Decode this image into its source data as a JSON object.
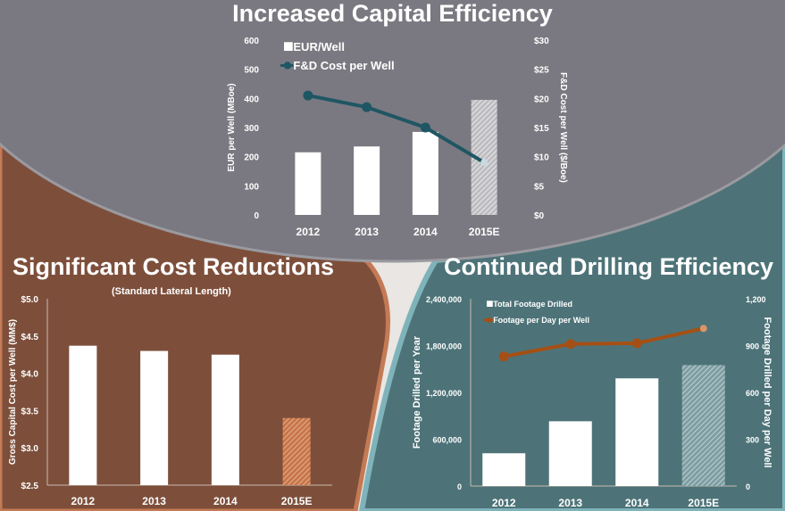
{
  "panels": {
    "top": {
      "title": "Increased Capital Efficiency"
    },
    "left": {
      "title": "Significant Cost Reductions",
      "subtitle": "(Standard Lateral Length)"
    },
    "right": {
      "title": "Continued Drilling Efficiency"
    }
  },
  "colors": {
    "gray": "#7a7981",
    "brown": "#7d4f3b",
    "teal": "#4d7378",
    "line_teal": "#1f5663",
    "line_orange": "#a64f14",
    "hatch_orange": "#d9956a"
  },
  "chart_data": [
    {
      "id": "top",
      "type": "bar+line",
      "categories": [
        "2012",
        "2013",
        "2014",
        "2015E"
      ],
      "series": [
        {
          "name": "EUR/Well",
          "axis": "left",
          "kind": "bar",
          "values": [
            215,
            235,
            285,
            395
          ]
        },
        {
          "name": "F&D Cost per Well",
          "axis": "right",
          "kind": "line",
          "values": [
            20.5,
            18.5,
            15,
            9
          ]
        }
      ],
      "ylabel": "EUR per Well  (MBoe)",
      "y2label": "F&D Cost per Well  ($/Boe)",
      "ylim": [
        0,
        600
      ],
      "yticks": [
        "0",
        "100",
        "200",
        "300",
        "400",
        "500",
        "600"
      ],
      "y2lim": [
        0,
        30
      ],
      "y2ticks": [
        "$0",
        "$5",
        "$10",
        "$15",
        "$20",
        "$25",
        "$30"
      ],
      "legend": "top-left"
    },
    {
      "id": "left",
      "type": "bar",
      "categories": [
        "2012",
        "2013",
        "2014",
        "2015E"
      ],
      "values": [
        4.37,
        4.3,
        4.25,
        3.4
      ],
      "ylabel": "Gross Capital Cost per Well  (MM$)",
      "ylim": [
        2.5,
        5.0
      ],
      "yticks": [
        "$2.5",
        "$3.0",
        "$3.5",
        "$4.0",
        "$4.5",
        "$5.0"
      ]
    },
    {
      "id": "right",
      "type": "bar+line",
      "categories": [
        "2012",
        "2013",
        "2014",
        "2015E"
      ],
      "series": [
        {
          "name": "Total Footage Drilled",
          "axis": "left",
          "kind": "bar",
          "values": [
            420000,
            830000,
            1380000,
            1550000
          ]
        },
        {
          "name": "Footage per Day per Well",
          "axis": "right",
          "kind": "line",
          "values": [
            830,
            910,
            915,
            1010
          ]
        }
      ],
      "ylabel": "Footage Drilled per Year",
      "y2label": "Footage Drilled per Day per Well",
      "ylim": [
        0,
        2400000
      ],
      "yticks": [
        "0",
        "600,000",
        "1,200,000",
        "1,800,000",
        "2,400,000"
      ],
      "y2lim": [
        0,
        1200
      ],
      "y2ticks": [
        "0",
        "300",
        "600",
        "900",
        "1,200"
      ],
      "legend": "top-left"
    }
  ]
}
